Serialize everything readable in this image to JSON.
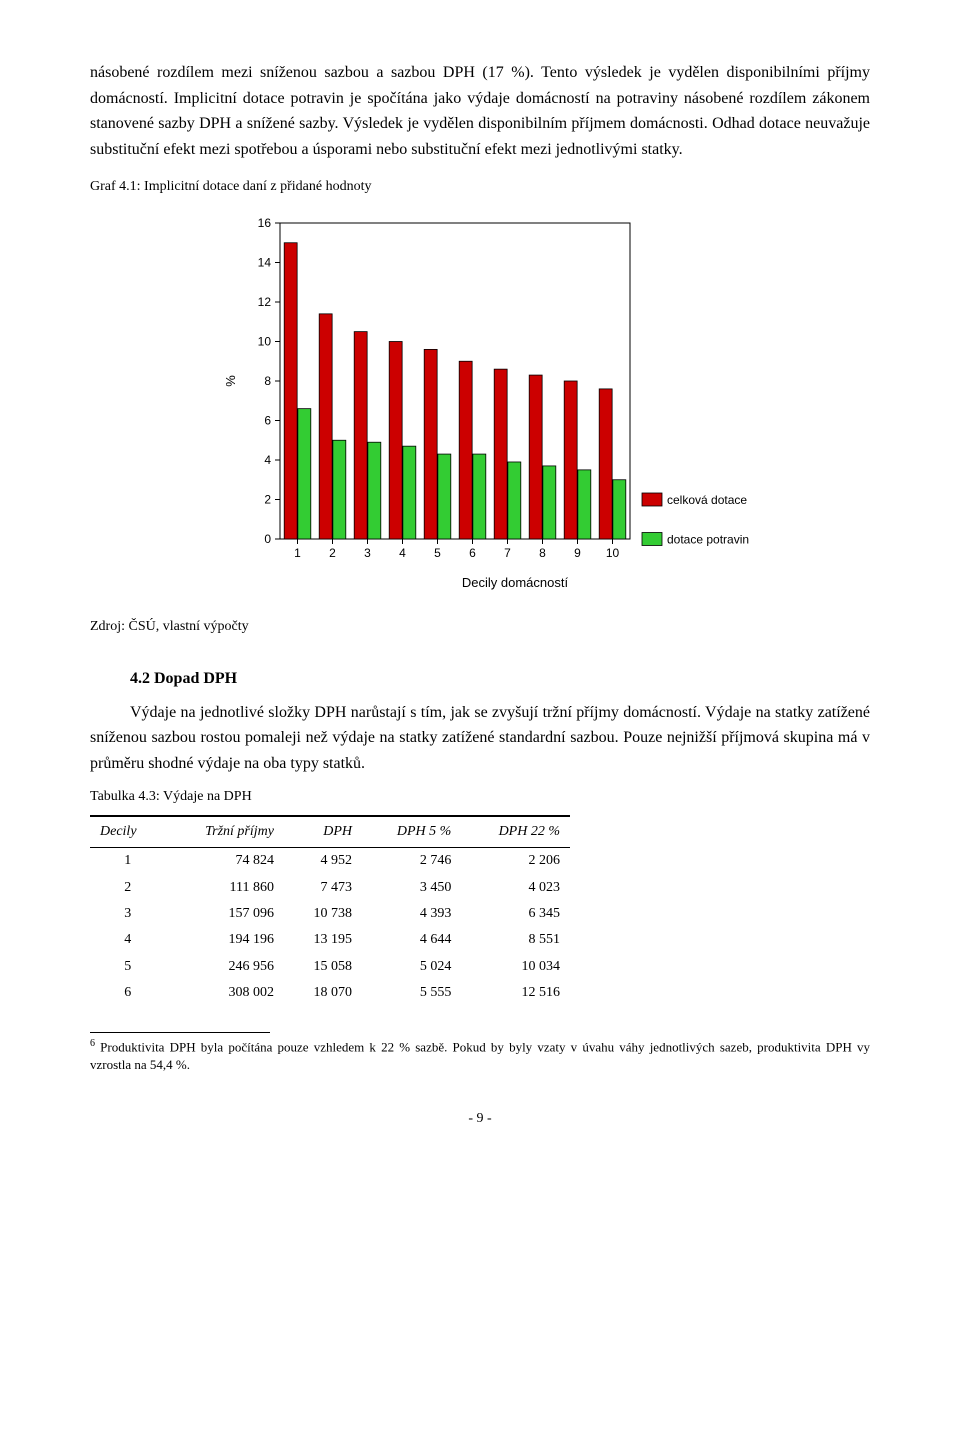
{
  "paragraphs": {
    "p1": "násobené rozdílem mezi sníženou sazbou a sazbou DPH (17 %). Tento výsledek je vydělen disponibilními příjmy domácností. Implicitní dotace potravin je spočítána jako výdaje domácností na potraviny násobené rozdílem zákonem stanovené sazby DPH a snížené sazby. Výsledek je vydělen disponibilním příjmem domácnosti. Odhad dotace neuvažuje substituční efekt mezi spotřebou a úsporami nebo substituční efekt mezi jednotlivými statky.",
    "graf_caption": "Graf 4.1: Implicitní dotace daní z přidané hodnoty",
    "source": "Zdroj: ČSÚ, vlastní výpočty",
    "section_heading": "4.2   Dopad DPH",
    "p2": "Výdaje na jednotlivé složky DPH narůstají s tím, jak se zvyšují tržní příjmy domácností. Výdaje na statky zatížené sníženou sazbou rostou pomaleji než výdaje na statky zatížené standardní sazbou. Pouze nejnižší příjmová skupina má v průměru shodné výdaje na oba typy statků.",
    "table_caption": "Tabulka 4.3: Výdaje na DPH",
    "footnote": "Produktivita DPH byla počítána pouze vzhledem k 22 % sazbě. Pokud by byly vzaty v úvahu váhy jednotlivých sazeb, produktivita DPH vy vzrostla na 54,4 %.",
    "footnote_num": "6",
    "pagenum": "- 9 -"
  },
  "chart": {
    "type": "bar",
    "categories": [
      "1",
      "2",
      "3",
      "4",
      "5",
      "6",
      "7",
      "8",
      "9",
      "10"
    ],
    "series1": {
      "label": "celková dotace",
      "color": "#cc0000",
      "values": [
        15.0,
        11.4,
        10.5,
        10.0,
        9.6,
        9.0,
        8.6,
        8.3,
        8.0,
        7.6
      ]
    },
    "series2": {
      "label": "dotace potravin",
      "color": "#33cc33",
      "values": [
        6.6,
        5.0,
        4.9,
        4.7,
        4.3,
        4.3,
        3.9,
        3.7,
        3.5,
        3.0
      ]
    },
    "ylabel": "%",
    "xaxis_title": "Decily domácností",
    "ylim": [
      0,
      16
    ],
    "ytick_step": 2,
    "background_color": "#ffffff",
    "axis_color": "#000000",
    "bar_border": "#000000",
    "tick_font_family": "Arial, Helvetica, sans-serif",
    "tick_fontsize": 12,
    "ylabel_fontsize": 13,
    "cluster_gap": 0.24,
    "bar_gap": 0.02
  },
  "table": {
    "columns": [
      "Decily",
      "Tržní příjmy",
      "DPH",
      "DPH 5 %",
      "DPH 22 %"
    ],
    "rows": [
      [
        "1",
        "74 824",
        "4 952",
        "2 746",
        "2 206"
      ],
      [
        "2",
        "111 860",
        "7 473",
        "3 450",
        "4 023"
      ],
      [
        "3",
        "157 096",
        "10 738",
        "4 393",
        "6 345"
      ],
      [
        "4",
        "194 196",
        "13 195",
        "4 644",
        "8 551"
      ],
      [
        "5",
        "246 956",
        "15 058",
        "5 024",
        "10 034"
      ],
      [
        "6",
        "308 002",
        "18 070",
        "5 555",
        "12 516"
      ]
    ]
  }
}
